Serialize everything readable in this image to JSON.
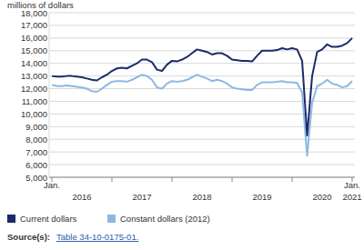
{
  "chart_data": {
    "type": "line",
    "y_label": "millions of dollars",
    "source_label": "Source(s):",
    "source_text": "Table 34-10-0175-01.",
    "categories": [
      "Jan.",
      null,
      null,
      null,
      null,
      null,
      "2016",
      null,
      null,
      null,
      null,
      null,
      null,
      null,
      null,
      null,
      null,
      null,
      "2017",
      null,
      null,
      null,
      null,
      null,
      null,
      null,
      null,
      null,
      null,
      null,
      "2018",
      null,
      null,
      null,
      null,
      null,
      null,
      null,
      null,
      null,
      null,
      null,
      "2019",
      null,
      null,
      null,
      null,
      null,
      null,
      null,
      null,
      null,
      null,
      null,
      "2020",
      null,
      null,
      null,
      null,
      null,
      "Jan. 2021"
    ],
    "series": [
      {
        "name": "Current dollars",
        "color": "#1b2a6b",
        "values": [
          13000,
          12950,
          12950,
          13000,
          13000,
          12950,
          12900,
          12800,
          12700,
          12650,
          12900,
          13100,
          13400,
          13600,
          13650,
          13600,
          13800,
          14000,
          14300,
          14300,
          14100,
          13500,
          13400,
          13900,
          14200,
          14150,
          14300,
          14500,
          14800,
          15100,
          15000,
          14900,
          14700,
          14800,
          14800,
          14600,
          14300,
          14250,
          14200,
          14200,
          14150,
          14600,
          15000,
          15000,
          15000,
          15050,
          15200,
          15100,
          15200,
          15100,
          14200,
          8300,
          13000,
          14900,
          15100,
          15500,
          15300,
          15300,
          15400,
          15600,
          16000
        ]
      },
      {
        "name": "Constant dollars (2012)",
        "color": "#8db8e2",
        "values": [
          12300,
          12200,
          12200,
          12250,
          12200,
          12150,
          12100,
          12000,
          11800,
          11750,
          12000,
          12300,
          12550,
          12600,
          12600,
          12550,
          12700,
          12900,
          13100,
          13000,
          12700,
          12100,
          12000,
          12400,
          12600,
          12550,
          12600,
          12700,
          12900,
          13100,
          12950,
          12800,
          12600,
          12700,
          12600,
          12400,
          12100,
          12000,
          11950,
          11900,
          11900,
          12300,
          12500,
          12500,
          12500,
          12550,
          12600,
          12500,
          12500,
          12450,
          11700,
          6700,
          10900,
          12200,
          12400,
          12700,
          12400,
          12300,
          12100,
          12200,
          12600
        ]
      }
    ],
    "ylim": [
      5000,
      18000
    ],
    "yticks": [
      {
        "value": 5000,
        "label": "5,000"
      },
      {
        "value": 6000,
        "label": "6,000"
      },
      {
        "value": 7000,
        "label": "7,000"
      },
      {
        "value": 8000,
        "label": "8,000"
      },
      {
        "value": 9000,
        "label": "9,000"
      },
      {
        "value": 10000,
        "label": "10,000"
      },
      {
        "value": 11000,
        "label": "11,000"
      },
      {
        "value": 12000,
        "label": "12,000"
      },
      {
        "value": 13000,
        "label": "13,000"
      },
      {
        "value": 14000,
        "label": "14,000"
      },
      {
        "value": 15000,
        "label": "15,000"
      },
      {
        "value": 16000,
        "label": "16,000"
      },
      {
        "value": 17000,
        "label": "17,000"
      },
      {
        "value": 18000,
        "label": "18,000"
      }
    ],
    "grid": true,
    "legend": "bottom"
  }
}
